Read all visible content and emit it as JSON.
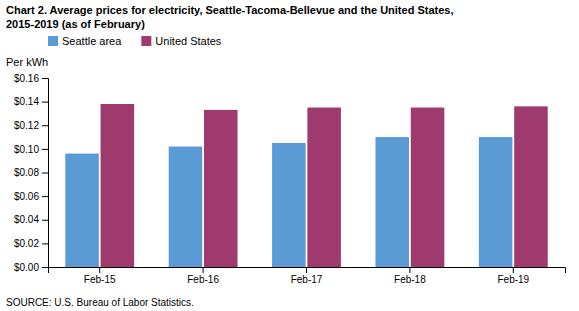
{
  "chart_data": {
    "type": "bar",
    "title": "Chart 2. Average prices for electricity, Seattle-Tacoma-Bellevue and the United States,",
    "subtitle": "2015-2019  (as of February)",
    "ylabel": "Per kWh",
    "source": "SOURCE: U.S. Bureau of Labor Statistics.",
    "categories": [
      "Feb-15",
      "Feb-16",
      "Feb-17",
      "Feb-18",
      "Feb-19"
    ],
    "series": [
      {
        "name": "Seattle area",
        "color": "#5b9bd5",
        "values": [
          0.096,
          0.102,
          0.105,
          0.11,
          0.11
        ]
      },
      {
        "name": "United States",
        "color": "#9e3a6e",
        "values": [
          0.138,
          0.133,
          0.135,
          0.135,
          0.136
        ]
      }
    ],
    "ylim": [
      0,
      0.16
    ],
    "yticks": [
      {
        "value": 0.0,
        "label": "$0.00"
      },
      {
        "value": 0.02,
        "label": "$0.02"
      },
      {
        "value": 0.04,
        "label": "$0.04"
      },
      {
        "value": 0.06,
        "label": "$0.06"
      },
      {
        "value": 0.08,
        "label": "$0.08"
      },
      {
        "value": 0.1,
        "label": "$0.10"
      },
      {
        "value": 0.12,
        "label": "$0.12"
      },
      {
        "value": 0.14,
        "label": "$0.14"
      },
      {
        "value": 0.16,
        "label": "$0.16"
      }
    ],
    "grid": false,
    "legend": "top"
  }
}
